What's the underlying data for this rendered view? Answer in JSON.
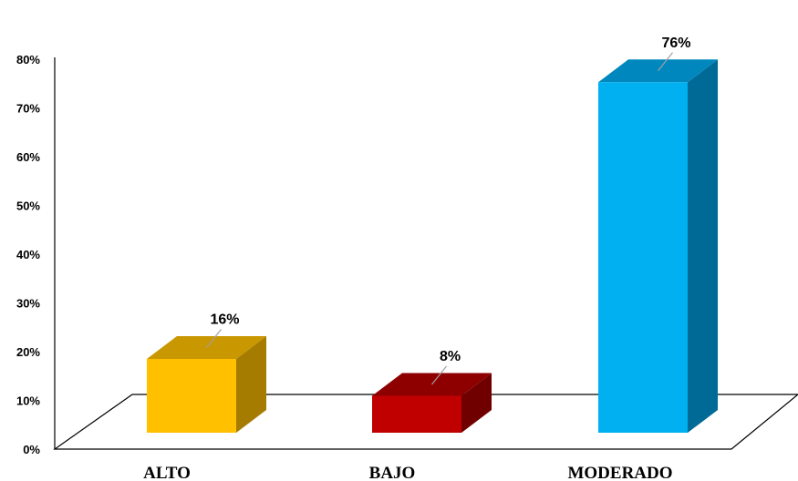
{
  "chart_data": {
    "type": "bar",
    "categories": [
      "ALTO",
      "BAJO",
      "MODERADO"
    ],
    "values": [
      16,
      8,
      76
    ],
    "data_labels": [
      "16%",
      "8%",
      "76%"
    ],
    "ylim": [
      0,
      80
    ],
    "yticks": [
      "0%",
      "10%",
      "20%",
      "30%",
      "40%",
      "50%",
      "60%",
      "70%",
      "80%"
    ],
    "bar_style": "3d",
    "grid": false,
    "legend": "none",
    "colors": {
      "ALTO": {
        "front": "#FFC000",
        "top": "#C99700",
        "side": "#A67C00"
      },
      "BAJO": {
        "front": "#C00000",
        "top": "#8E0000",
        "side": "#700000"
      },
      "MODERADO": {
        "front": "#00B0F0",
        "top": "#0088BE",
        "side": "#006A96"
      }
    },
    "floor_stroke": "#000000"
  }
}
